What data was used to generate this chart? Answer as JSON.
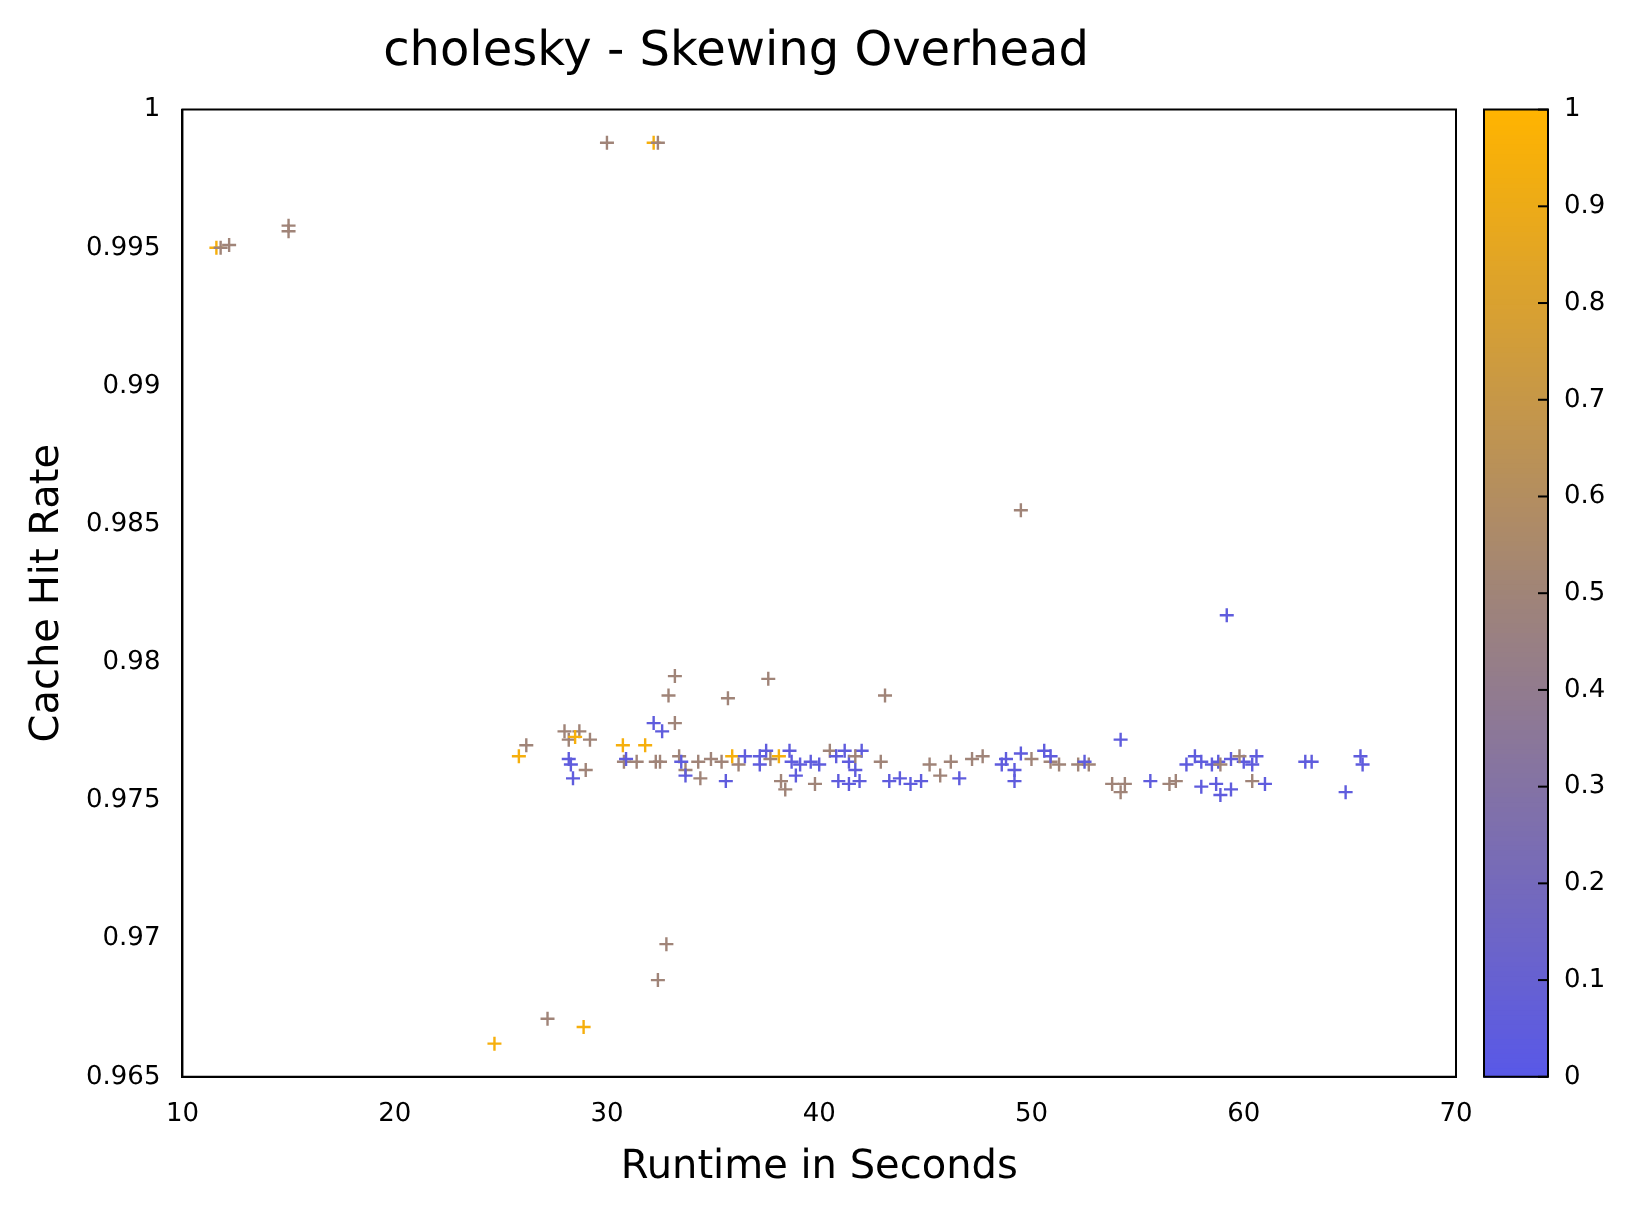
{
  "chart_data": {
    "type": "scatter",
    "title": "cholesky - Skewing Overhead",
    "xlabel": "Runtime in Seconds",
    "ylabel": "Cache Hit Rate",
    "marker": "cross",
    "legend": false,
    "grid": false,
    "xlim": [
      10,
      70
    ],
    "xticks": [
      10,
      20,
      30,
      40,
      50,
      60,
      70
    ],
    "ylim": [
      0.965,
      1
    ],
    "yticks": [
      0.965,
      0.97,
      0.975,
      0.98,
      0.985,
      0.99,
      0.995,
      1
    ],
    "clim": [
      0,
      1
    ],
    "cticks": [
      0,
      0.1,
      0.2,
      0.3,
      0.4,
      0.5,
      0.6,
      0.7,
      0.8,
      0.9,
      1
    ],
    "x": [
      11.6,
      11.8,
      12.2,
      15,
      15,
      30.0,
      32.2,
      32.4,
      49.5,
      59.2,
      24.7,
      27.2,
      28.9,
      32.4,
      32.8,
      25.85,
      26.2,
      28.2,
      28.0,
      28.7,
      28.5,
      29.2,
      28.2,
      28.3,
      28.4,
      29.0,
      30.75,
      31.8,
      30.8,
      30.9,
      31.4,
      32.2,
      32.6,
      33.2,
      32.9,
      33.2,
      37.6,
      35.7,
      43.1,
      32.3,
      32.5,
      33.4,
      34.3,
      33.7,
      34.4,
      34.9,
      35.4,
      36.2,
      33.5,
      33.7,
      35.6,
      35.9,
      36.5,
      37.2,
      37.5,
      37.2,
      37.7,
      38.6,
      38.7,
      39.1,
      39.6,
      40.0,
      38.2,
      38.4,
      38.1,
      38.9,
      39.8,
      40.5,
      40.8,
      41.2,
      41.4,
      42.0,
      41.7,
      40.9,
      41.4,
      41.9,
      41.7,
      42.9,
      43.3,
      43.8,
      44.3,
      44.8,
      45.2,
      45.7,
      46.2,
      47.2,
      46.6,
      47.7,
      48.8,
      48.6,
      49.5,
      49.2,
      49.2,
      50.6,
      50.0,
      50.9,
      51.3,
      50.9,
      52.2,
      52.7,
      52.5,
      54.2,
      53.8,
      54.2,
      54.4,
      55.6,
      56.5,
      56.8,
      57.3,
      57.7,
      58.0,
      58.5,
      58.8,
      59.4,
      60.0,
      60.6,
      60.4,
      58.9,
      59.8,
      58.0,
      58.7,
      58.9,
      59.4,
      61.0,
      60.4,
      62.9,
      63.2,
      65.5,
      65.6,
      64.8
    ],
    "values": [
      0.995,
      0.995,
      0.9951,
      0.9958,
      0.9956,
      0.9988,
      0.9988,
      0.9988,
      0.9855,
      0.9817,
      0.9662,
      0.9671,
      0.9668,
      0.9685,
      0.9698,
      0.9766,
      0.977,
      0.9772,
      0.9775,
      0.9775,
      0.9773,
      0.9772,
      0.9765,
      0.9763,
      0.9758,
      0.9761,
      0.977,
      0.977,
      0.9764,
      0.9765,
      0.9764,
      0.9778,
      0.9775,
      0.9795,
      0.9788,
      0.9778,
      0.9794,
      0.9787,
      0.9788,
      0.9764,
      0.9764,
      0.9766,
      0.9764,
      0.9761,
      0.9758,
      0.9765,
      0.9764,
      0.9763,
      0.9764,
      0.9759,
      0.9757,
      0.9766,
      0.9766,
      0.9766,
      0.9768,
      0.9763,
      0.9765,
      0.9768,
      0.9764,
      0.9763,
      0.9764,
      0.9763,
      0.9757,
      0.9754,
      0.9766,
      0.9759,
      0.9756,
      0.9768,
      0.9766,
      0.9768,
      0.9764,
      0.9768,
      0.9761,
      0.9757,
      0.9756,
      0.9757,
      0.9766,
      0.9764,
      0.9757,
      0.9758,
      0.9756,
      0.9757,
      0.9763,
      0.9759,
      0.9764,
      0.9765,
      0.9758,
      0.9766,
      0.9765,
      0.9763,
      0.9767,
      0.9761,
      0.9757,
      0.9768,
      0.9765,
      0.9764,
      0.9763,
      0.9766,
      0.9763,
      0.9763,
      0.9764,
      0.9772,
      0.9756,
      0.9753,
      0.9756,
      0.9757,
      0.9756,
      0.9757,
      0.9763,
      0.9766,
      0.9764,
      0.9763,
      0.9764,
      0.9765,
      0.9764,
      0.9766,
      0.9763,
      0.9763,
      0.9766,
      0.9755,
      0.9756,
      0.9752,
      0.9754,
      0.9756,
      0.9757,
      0.9764,
      0.9764,
      0.9766,
      0.9763,
      0.9753
    ],
    "cvalues": [
      0.95,
      0.5,
      0.5,
      0.5,
      0.5,
      0.5,
      0.95,
      0.5,
      0.5,
      0.05,
      0.95,
      0.5,
      0.95,
      0.5,
      0.5,
      0.95,
      0.5,
      0.5,
      0.5,
      0.5,
      0.95,
      0.5,
      0.05,
      0.05,
      0.05,
      0.5,
      0.95,
      0.95,
      0.5,
      0.05,
      0.5,
      0.05,
      0.05,
      0.5,
      0.5,
      0.5,
      0.5,
      0.5,
      0.5,
      0.5,
      0.5,
      0.5,
      0.5,
      0.5,
      0.5,
      0.5,
      0.5,
      0.5,
      0.05,
      0.05,
      0.05,
      0.95,
      0.05,
      0.05,
      0.05,
      0.05,
      0.5,
      0.05,
      0.05,
      0.05,
      0.05,
      0.05,
      0.5,
      0.5,
      0.95,
      0.05,
      0.5,
      0.5,
      0.05,
      0.05,
      0.05,
      0.05,
      0.05,
      0.05,
      0.05,
      0.05,
      0.5,
      0.5,
      0.05,
      0.05,
      0.05,
      0.05,
      0.5,
      0.5,
      0.5,
      0.5,
      0.05,
      0.5,
      0.05,
      0.05,
      0.05,
      0.05,
      0.05,
      0.05,
      0.5,
      0.5,
      0.5,
      0.05,
      0.5,
      0.5,
      0.05,
      0.05,
      0.5,
      0.5,
      0.5,
      0.05,
      0.5,
      0.5,
      0.05,
      0.05,
      0.05,
      0.05,
      0.05,
      0.05,
      0.05,
      0.05,
      0.05,
      0.5,
      0.5,
      0.05,
      0.05,
      0.05,
      0.05,
      0.05,
      0.5,
      0.05,
      0.05,
      0.05,
      0.05,
      0.05
    ]
  }
}
